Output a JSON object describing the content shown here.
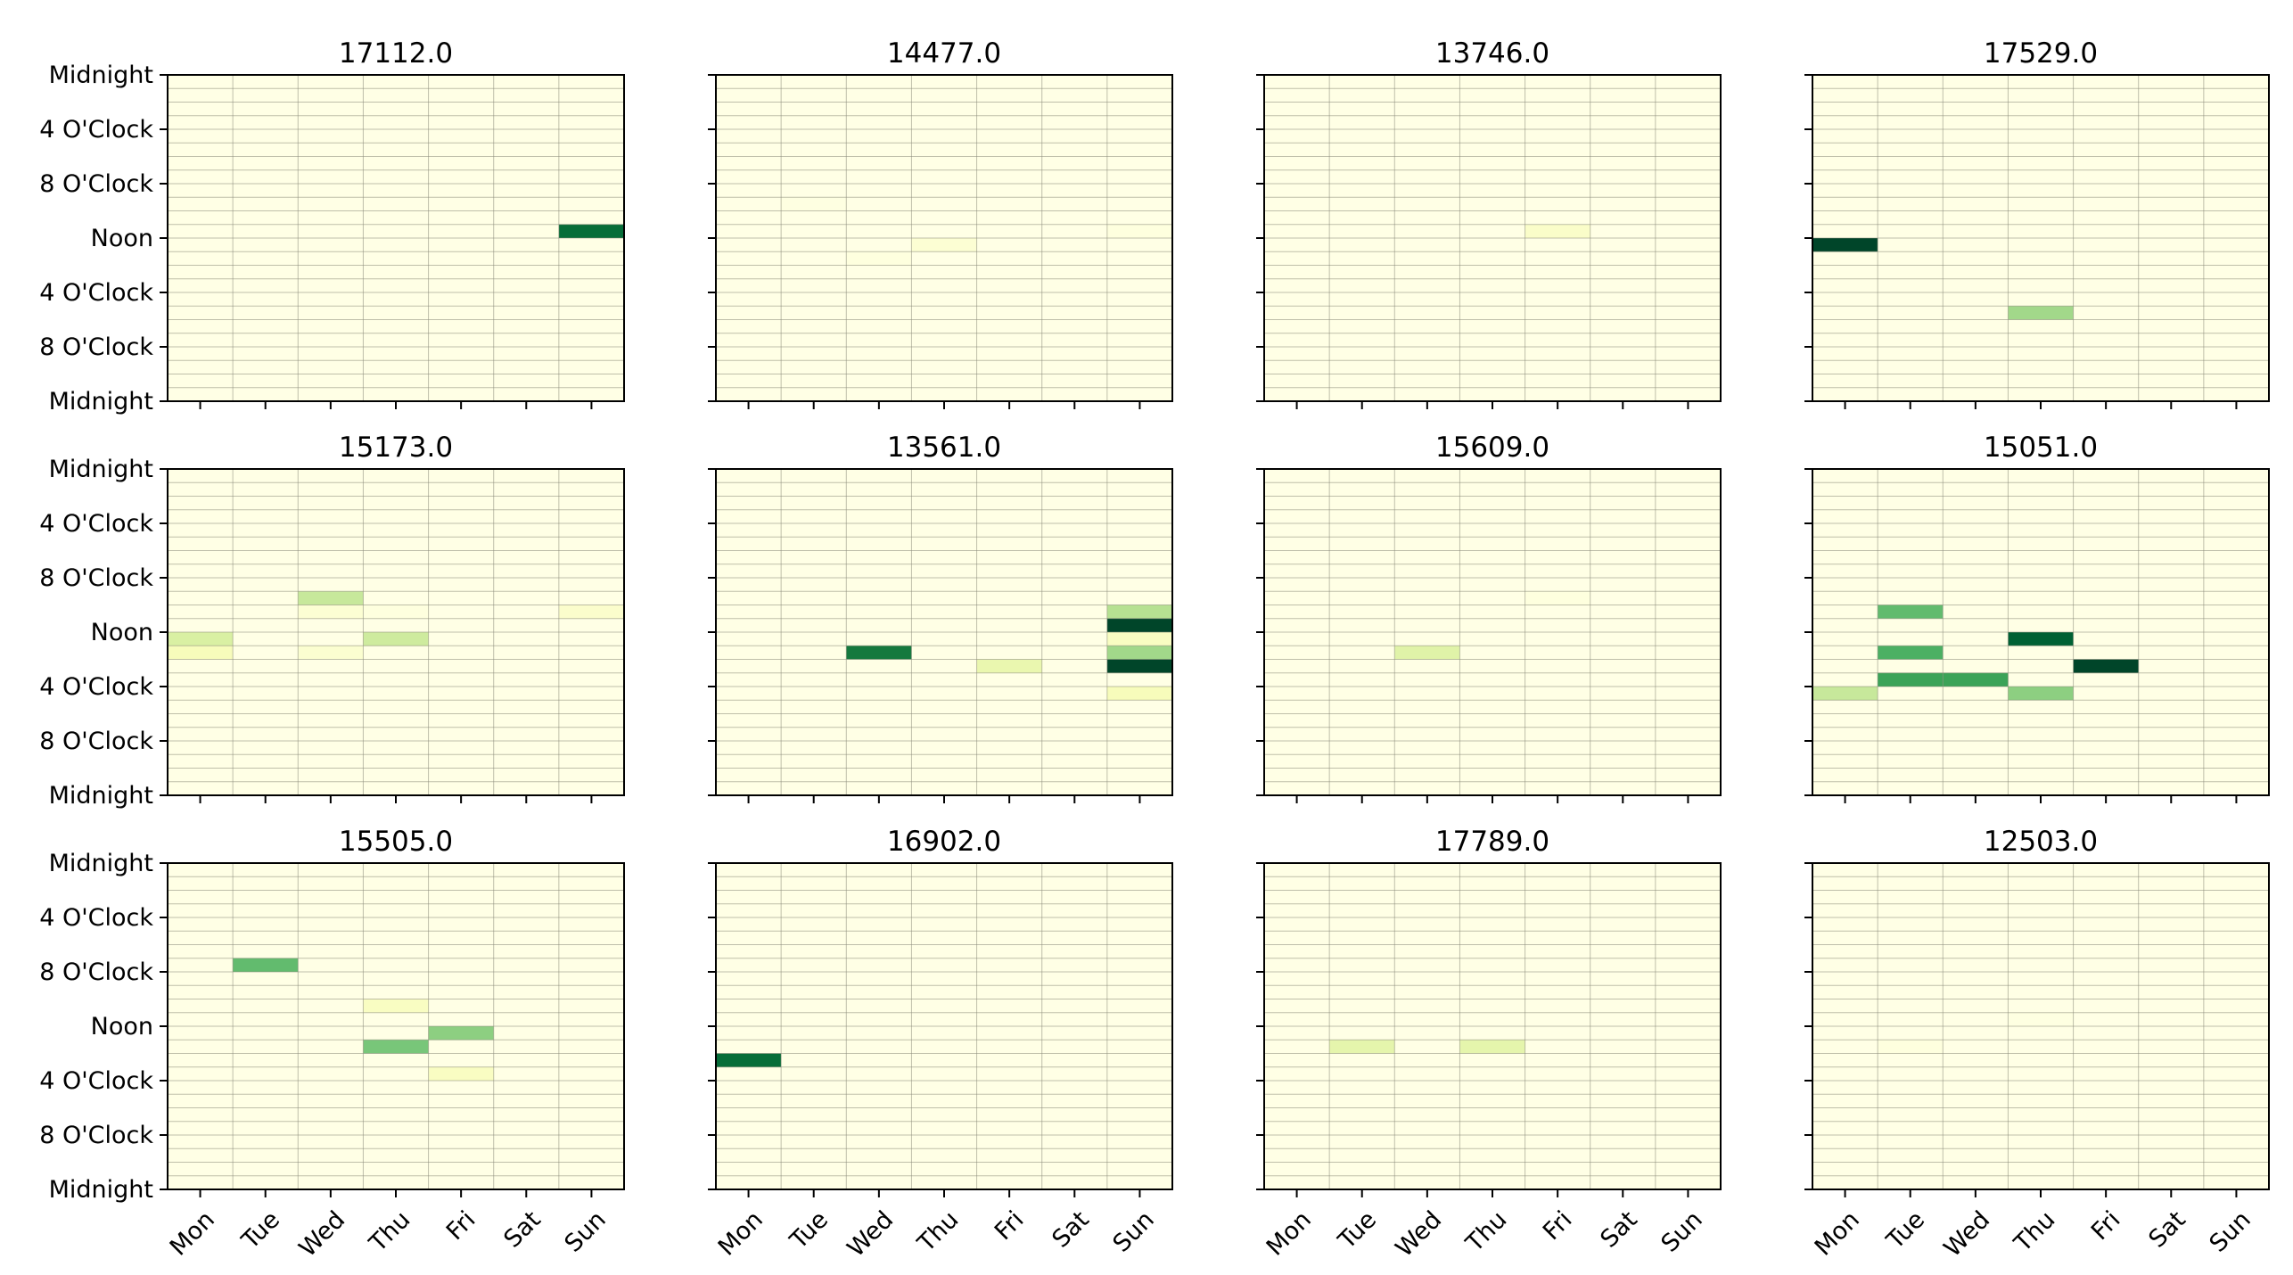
{
  "chart_data": {
    "type": "heatmap",
    "x_categories": [
      "Mon",
      "Tue",
      "Wed",
      "Thu",
      "Fri",
      "Sat",
      "Sun"
    ],
    "y_tick_labels": [
      "Midnight",
      "4 O'Clock",
      "8 O'Clock",
      "Noon",
      "4 O'Clock",
      "8 O'Clock",
      "Midnight"
    ],
    "hours_per_day": 24,
    "colormap": [
      "#ffffe5",
      "#f7fcb9",
      "#d9f0a3",
      "#addd8e",
      "#78c679",
      "#41ab5d",
      "#238443",
      "#006837",
      "#004529"
    ],
    "grid": true,
    "grid_color": "#8a8a7a",
    "panels": [
      {
        "title": "17112.0",
        "cells": [
          {
            "day": "Sun",
            "hour": 11,
            "value": 0.85
          }
        ]
      },
      {
        "title": "14477.0",
        "cells": [
          {
            "day": "Thu",
            "hour": 12,
            "value": 0.05
          },
          {
            "day": "Wed",
            "hour": 13,
            "value": 0.02
          },
          {
            "day": "Sun",
            "hour": 11,
            "value": 0.02
          },
          {
            "day": "Tue",
            "hour": 9,
            "value": 0.01
          }
        ]
      },
      {
        "title": "13746.0",
        "cells": [
          {
            "day": "Fri",
            "hour": 11,
            "value": 0.08
          }
        ]
      },
      {
        "title": "17529.0",
        "cells": [
          {
            "day": "Mon",
            "hour": 12,
            "value": 1.0
          },
          {
            "day": "Thu",
            "hour": 17,
            "value": 0.4
          }
        ]
      },
      {
        "title": "15173.0",
        "cells": [
          {
            "day": "Wed",
            "hour": 9,
            "value": 0.3
          },
          {
            "day": "Wed",
            "hour": 10,
            "value": 0.05
          },
          {
            "day": "Wed",
            "hour": 13,
            "value": 0.06
          },
          {
            "day": "Mon",
            "hour": 12,
            "value": 0.25
          },
          {
            "day": "Mon",
            "hour": 13,
            "value": 0.12
          },
          {
            "day": "Thu",
            "hour": 12,
            "value": 0.28
          },
          {
            "day": "Thu",
            "hour": 10,
            "value": 0.02
          },
          {
            "day": "Sun",
            "hour": 10,
            "value": 0.07
          }
        ]
      },
      {
        "title": "13561.0",
        "cells": [
          {
            "day": "Wed",
            "hour": 13,
            "value": 0.8
          },
          {
            "day": "Fri",
            "hour": 14,
            "value": 0.18
          },
          {
            "day": "Sun",
            "hour": 10,
            "value": 0.35
          },
          {
            "day": "Sun",
            "hour": 11,
            "value": 1.0
          },
          {
            "day": "Sun",
            "hour": 12,
            "value": 0.1
          },
          {
            "day": "Sun",
            "hour": 13,
            "value": 0.4
          },
          {
            "day": "Sun",
            "hour": 14,
            "value": 1.0
          },
          {
            "day": "Sun",
            "hour": 16,
            "value": 0.12
          }
        ]
      },
      {
        "title": "15609.0",
        "cells": [
          {
            "day": "Wed",
            "hour": 13,
            "value": 0.22
          },
          {
            "day": "Fri",
            "hour": 9,
            "value": 0.02
          }
        ]
      },
      {
        "title": "15051.0",
        "cells": [
          {
            "day": "Tue",
            "hour": 10,
            "value": 0.55
          },
          {
            "day": "Tue",
            "hour": 13,
            "value": 0.6
          },
          {
            "day": "Tue",
            "hour": 15,
            "value": 0.65
          },
          {
            "day": "Wed",
            "hour": 15,
            "value": 0.65
          },
          {
            "day": "Thu",
            "hour": 12,
            "value": 0.9
          },
          {
            "day": "Thu",
            "hour": 16,
            "value": 0.45
          },
          {
            "day": "Fri",
            "hour": 14,
            "value": 1.0
          },
          {
            "day": "Mon",
            "hour": 16,
            "value": 0.3
          }
        ]
      },
      {
        "title": "15505.0",
        "cells": [
          {
            "day": "Tue",
            "hour": 7,
            "value": 0.55
          },
          {
            "day": "Thu",
            "hour": 10,
            "value": 0.1
          },
          {
            "day": "Thu",
            "hour": 13,
            "value": 0.5
          },
          {
            "day": "Fri",
            "hour": 12,
            "value": 0.45
          },
          {
            "day": "Fri",
            "hour": 15,
            "value": 0.1
          }
        ]
      },
      {
        "title": "16902.0",
        "cells": [
          {
            "day": "Mon",
            "hour": 14,
            "value": 0.85
          }
        ]
      },
      {
        "title": "17789.0",
        "cells": [
          {
            "day": "Tue",
            "hour": 13,
            "value": 0.2
          },
          {
            "day": "Thu",
            "hour": 13,
            "value": 0.2
          }
        ]
      },
      {
        "title": "12503.0",
        "cells": [
          {
            "day": "Tue",
            "hour": 13,
            "value": 0.02
          },
          {
            "day": "Thu",
            "hour": 11,
            "value": 0.01
          }
        ]
      }
    ]
  }
}
